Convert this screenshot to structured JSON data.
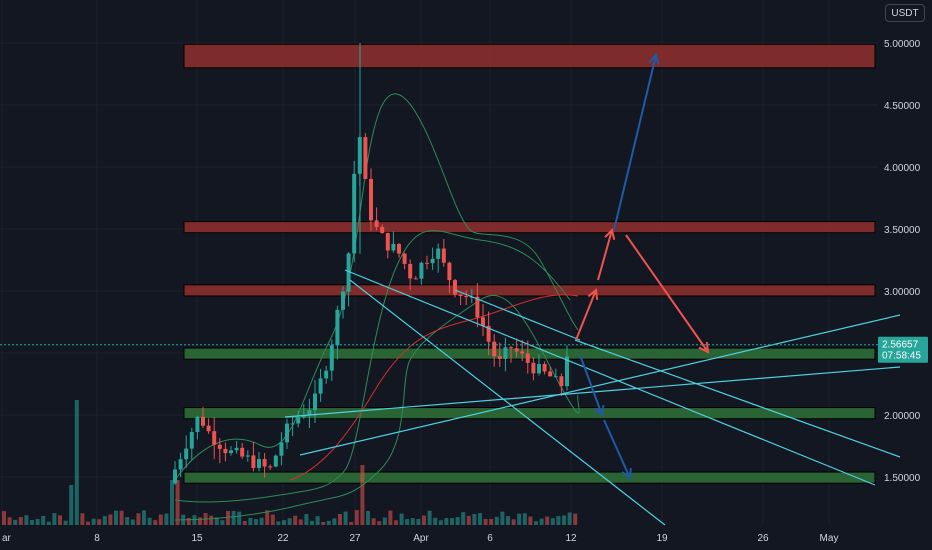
{
  "chart_data": {
    "type": "candlestick",
    "quote_currency": "USDT",
    "y_axis": {
      "range": [
        1.12,
        5.12
      ],
      "ticks": [
        "5.00000",
        "4.50000",
        "4.00000",
        "3.50000",
        "3.00000",
        "2.50000",
        "2.00000",
        "1.50000"
      ],
      "position": "right"
    },
    "x_axis": {
      "ticks": [
        "ar",
        "8",
        "15",
        "22",
        "27",
        "Apr",
        "6",
        "12",
        "19",
        "26",
        "May"
      ]
    },
    "last_price": {
      "value": "2.56657",
      "countdown": "07:58:45"
    },
    "resistance_zones": [
      {
        "low": 4.8,
        "high": 4.99
      },
      {
        "low": 3.47,
        "high": 3.56
      },
      {
        "low": 2.96,
        "high": 3.05
      }
    ],
    "support_zones": [
      {
        "low": 2.45,
        "high": 2.54
      },
      {
        "low": 1.97,
        "high": 2.06
      },
      {
        "low": 1.45,
        "high": 1.54
      }
    ],
    "colors": {
      "background": "#131722",
      "up": "#26a69a",
      "down": "#ef5350",
      "resistance": "#8b2e2e",
      "support": "#2e6b36",
      "trendline": "#4dd0e1",
      "projection_red": "#ef5350",
      "projection_blue": "#1e5aa8",
      "bollinger": "#2e8b57",
      "ma": "#d32f2f",
      "label_bg": "#26a69a"
    },
    "grid": true,
    "legend": "none"
  }
}
